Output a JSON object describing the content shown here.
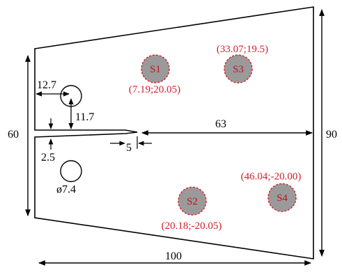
{
  "dimensions": {
    "overall_height_left": "60",
    "overall_height_right": "90",
    "overall_length": "100",
    "hole_offset_x": "12.7",
    "hole_offset_y": "11.7",
    "notch_gap": "2.5",
    "notch_tip": "5",
    "notch_to_right": "63",
    "hole_diameter": "ø7.4"
  },
  "sensors": [
    {
      "label": "S1",
      "coord": "(7.19;20.05)"
    },
    {
      "label": "S2",
      "coord": "(20.18;-20.05)"
    },
    {
      "label": "S3",
      "coord": "(33.07;19.5)"
    },
    {
      "label": "S4",
      "coord": "(46.04;-20.00)"
    }
  ],
  "colors": {
    "outline": "#000000",
    "sensor_fill": "#9a9a9a",
    "sensor_border": "#d0202a",
    "annotation_text": "#d0202a"
  }
}
